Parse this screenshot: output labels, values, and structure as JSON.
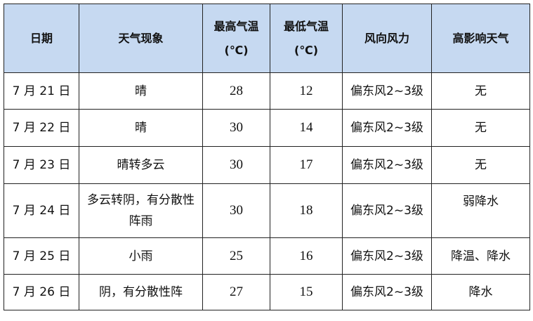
{
  "header_color": "#c6d9f1",
  "headers": [
    "日期",
    "天气现象",
    "最高气温",
    "(℃)",
    "最低气温",
    "(℃)",
    "风向风力",
    "高影响天气"
  ],
  "rows": [
    {
      "date": "7 月 21 日",
      "weather": "晴",
      "high": "28",
      "low": "12",
      "wind": "偏东风2~3级",
      "impact": "无"
    },
    {
      "date": "7 月 22 日",
      "weather": "晴",
      "high": "30",
      "low": "14",
      "wind": "偏东风2~3级",
      "impact": "无"
    },
    {
      "date": "7 月 23 日",
      "weather": "晴转多云",
      "high": "30",
      "low": "17",
      "wind": "偏东风2~3级",
      "impact": "无"
    },
    {
      "date": "7 月 24 日",
      "weather": "多云转阴，有分散性阵雨",
      "high": "30",
      "low": "18",
      "wind": "偏东风2~3级",
      "impact": "弱降水"
    },
    {
      "date": "7 月 25 日",
      "weather": "小雨",
      "high": "25",
      "low": "16",
      "wind": "偏东风2~3级",
      "impact": "降温、降水"
    },
    {
      "date": "7 月 26 日",
      "weather": "阴，有分散性阵",
      "high": "27",
      "low": "15",
      "wind": "偏东风2~3级",
      "impact": "降水"
    }
  ]
}
